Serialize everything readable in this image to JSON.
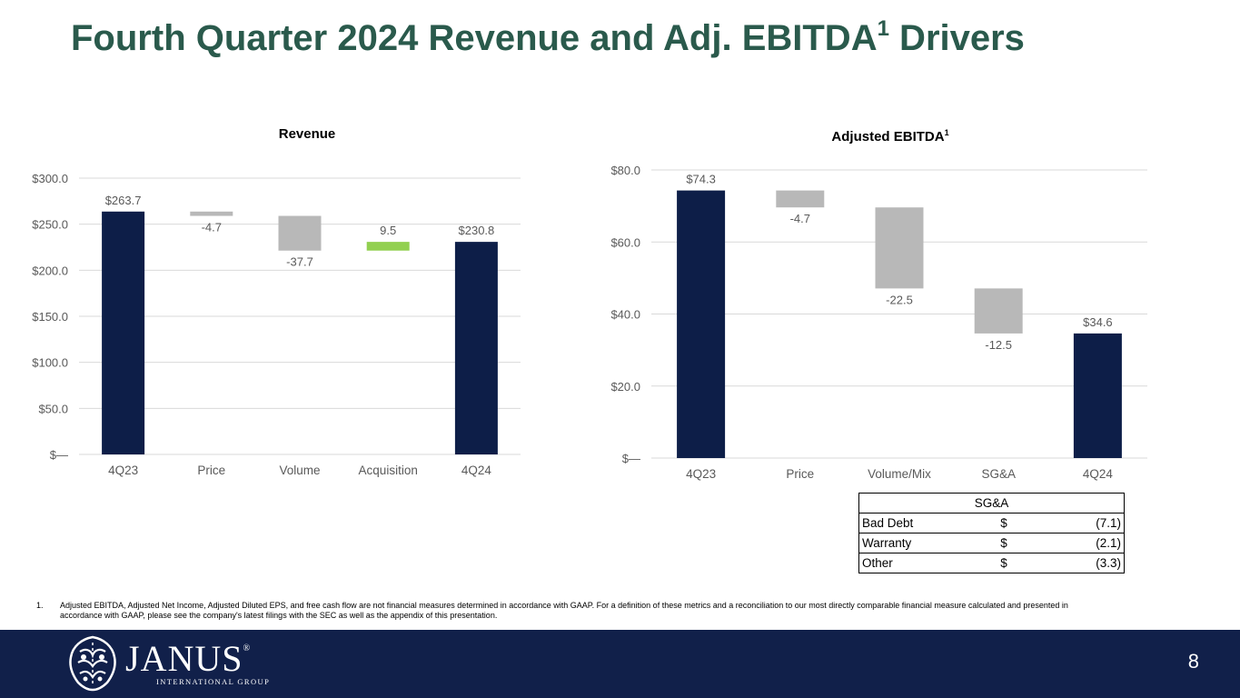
{
  "title": {
    "text": "Fourth Quarter 2024 Revenue and Adj. EBITDA",
    "superscript": "1",
    "suffix": " Drivers"
  },
  "colors": {
    "total": "#0d1e48",
    "decrease": "#b8b8b8",
    "increase": "#92d050",
    "title": "#2a5a4c",
    "footer": "#11204a"
  },
  "chart_data": [
    {
      "type": "bar",
      "subtype": "waterfall",
      "title": "Revenue",
      "categories": [
        "4Q23",
        "Price",
        "Volume",
        "Acquisition",
        "4Q24"
      ],
      "values": [
        263.7,
        -4.7,
        -37.7,
        9.5,
        230.8
      ],
      "kinds": [
        "total",
        "decrease",
        "decrease",
        "increase",
        "total"
      ],
      "data_labels": [
        "$263.7",
        "-4.7",
        "-37.7",
        "9.5",
        "$230.8"
      ],
      "ylim": [
        0,
        300
      ],
      "yticks": [
        0,
        50,
        100,
        150,
        200,
        250,
        300
      ],
      "ytick_labels": [
        "$—",
        "$50.0",
        "$100.0",
        "$150.0",
        "$200.0",
        "$250.0",
        "$300.0"
      ],
      "xlabel": "",
      "ylabel": "",
      "grid": true
    },
    {
      "type": "bar",
      "subtype": "waterfall",
      "title": "Adjusted EBITDA",
      "title_superscript": "1",
      "categories": [
        "4Q23",
        "Price",
        "Volume/Mix",
        "SG&A",
        "4Q24"
      ],
      "values": [
        74.3,
        -4.7,
        -22.5,
        -12.5,
        34.6
      ],
      "kinds": [
        "total",
        "decrease",
        "decrease",
        "decrease",
        "total"
      ],
      "data_labels": [
        "$74.3",
        "-4.7",
        "-22.5",
        "-12.5",
        "$34.6"
      ],
      "ylim": [
        0,
        80
      ],
      "yticks": [
        0,
        20,
        40,
        60,
        80
      ],
      "ytick_labels": [
        "$—",
        "$20.0",
        "$40.0",
        "$60.0",
        "$80.0"
      ],
      "xlabel": "",
      "ylabel": "",
      "grid": true
    }
  ],
  "sga_table": {
    "header": "SG&A",
    "rows": [
      {
        "label": "Bad Debt",
        "currency": "$",
        "value": "(7.1)"
      },
      {
        "label": "Warranty",
        "currency": "$",
        "value": "(2.1)"
      },
      {
        "label": "Other",
        "currency": "$",
        "value": "(3.3)"
      }
    ]
  },
  "footnote": {
    "number": "1.",
    "text": "Adjusted EBITDA, Adjusted Net Income, Adjusted Diluted EPS, and free cash flow are not financial measures determined in accordance with GAAP. For a definition of these metrics and a reconciliation to our most directly comparable financial measure calculated and presented in accordance with GAAP, please see the company's latest filings with the SEC as well as the appendix of this presentation."
  },
  "footer": {
    "logo_name": "JANUS",
    "logo_reg": "®",
    "logo_sub": "INTERNATIONAL GROUP",
    "page_number": "8"
  }
}
